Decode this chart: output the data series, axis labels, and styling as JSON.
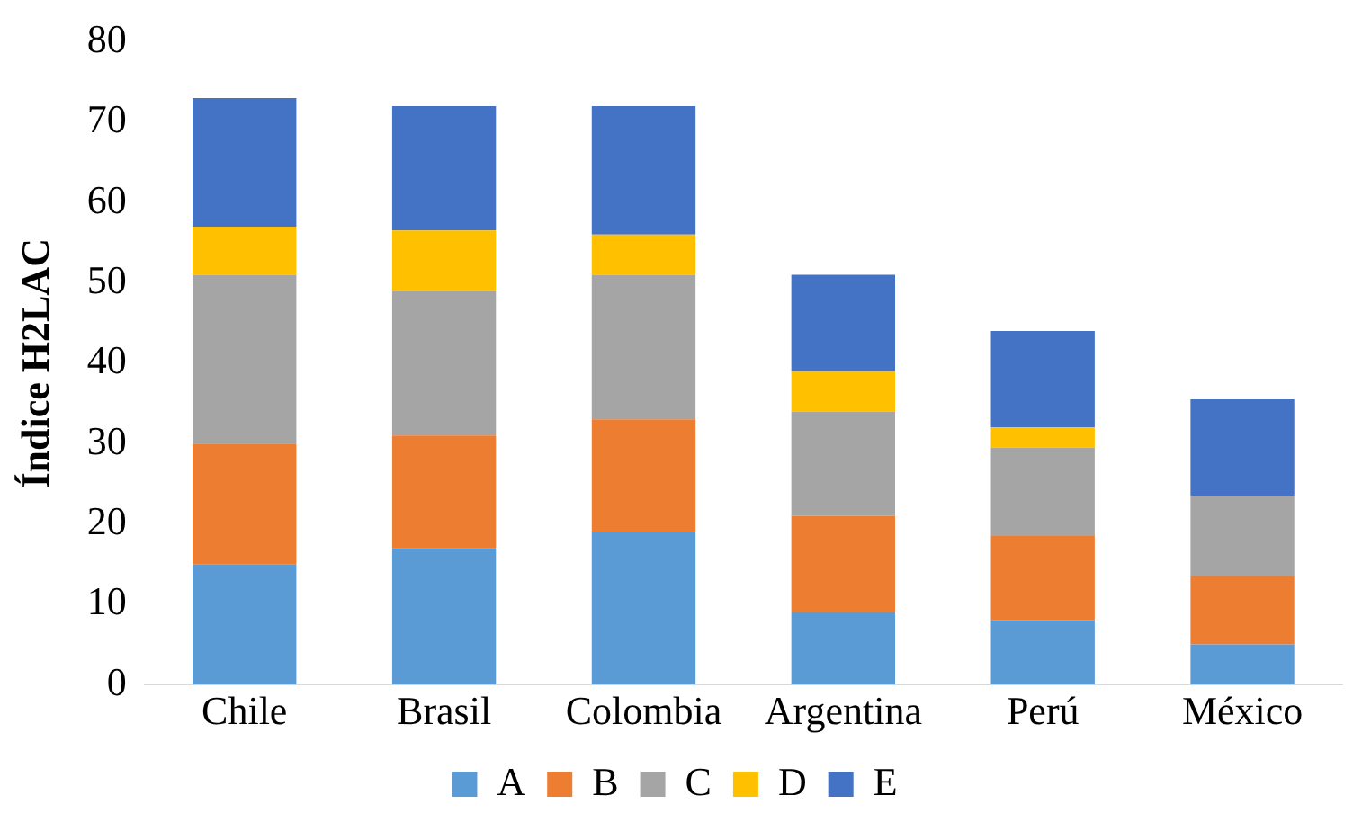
{
  "chart_data": {
    "type": "bar",
    "stacked": true,
    "ylabel": "Índice H2LAC",
    "categories": [
      "Chile",
      "Brasil",
      "Colombia",
      "Argentina",
      "Perú",
      "México"
    ],
    "series": [
      {
        "name": "A",
        "color": "#5b9bd5",
        "values": [
          15,
          17,
          19,
          9,
          8,
          5
        ]
      },
      {
        "name": "B",
        "color": "#ed7d31",
        "values": [
          15,
          14,
          14,
          12,
          10.5,
          8.5
        ]
      },
      {
        "name": "C",
        "color": "#a5a5a5",
        "values": [
          21,
          18,
          18,
          13,
          11,
          10
        ]
      },
      {
        "name": "D",
        "color": "#ffc000",
        "values": [
          6,
          7.5,
          5,
          5,
          2.5,
          0
        ]
      },
      {
        "name": "E",
        "color": "#4472c4",
        "values": [
          16,
          15.5,
          16,
          12,
          12,
          12
        ]
      }
    ],
    "ylim": [
      0,
      80
    ],
    "yticks": [
      0,
      10,
      20,
      30,
      40,
      50,
      60,
      70,
      80
    ],
    "grid": false,
    "legend": "bottom"
  }
}
